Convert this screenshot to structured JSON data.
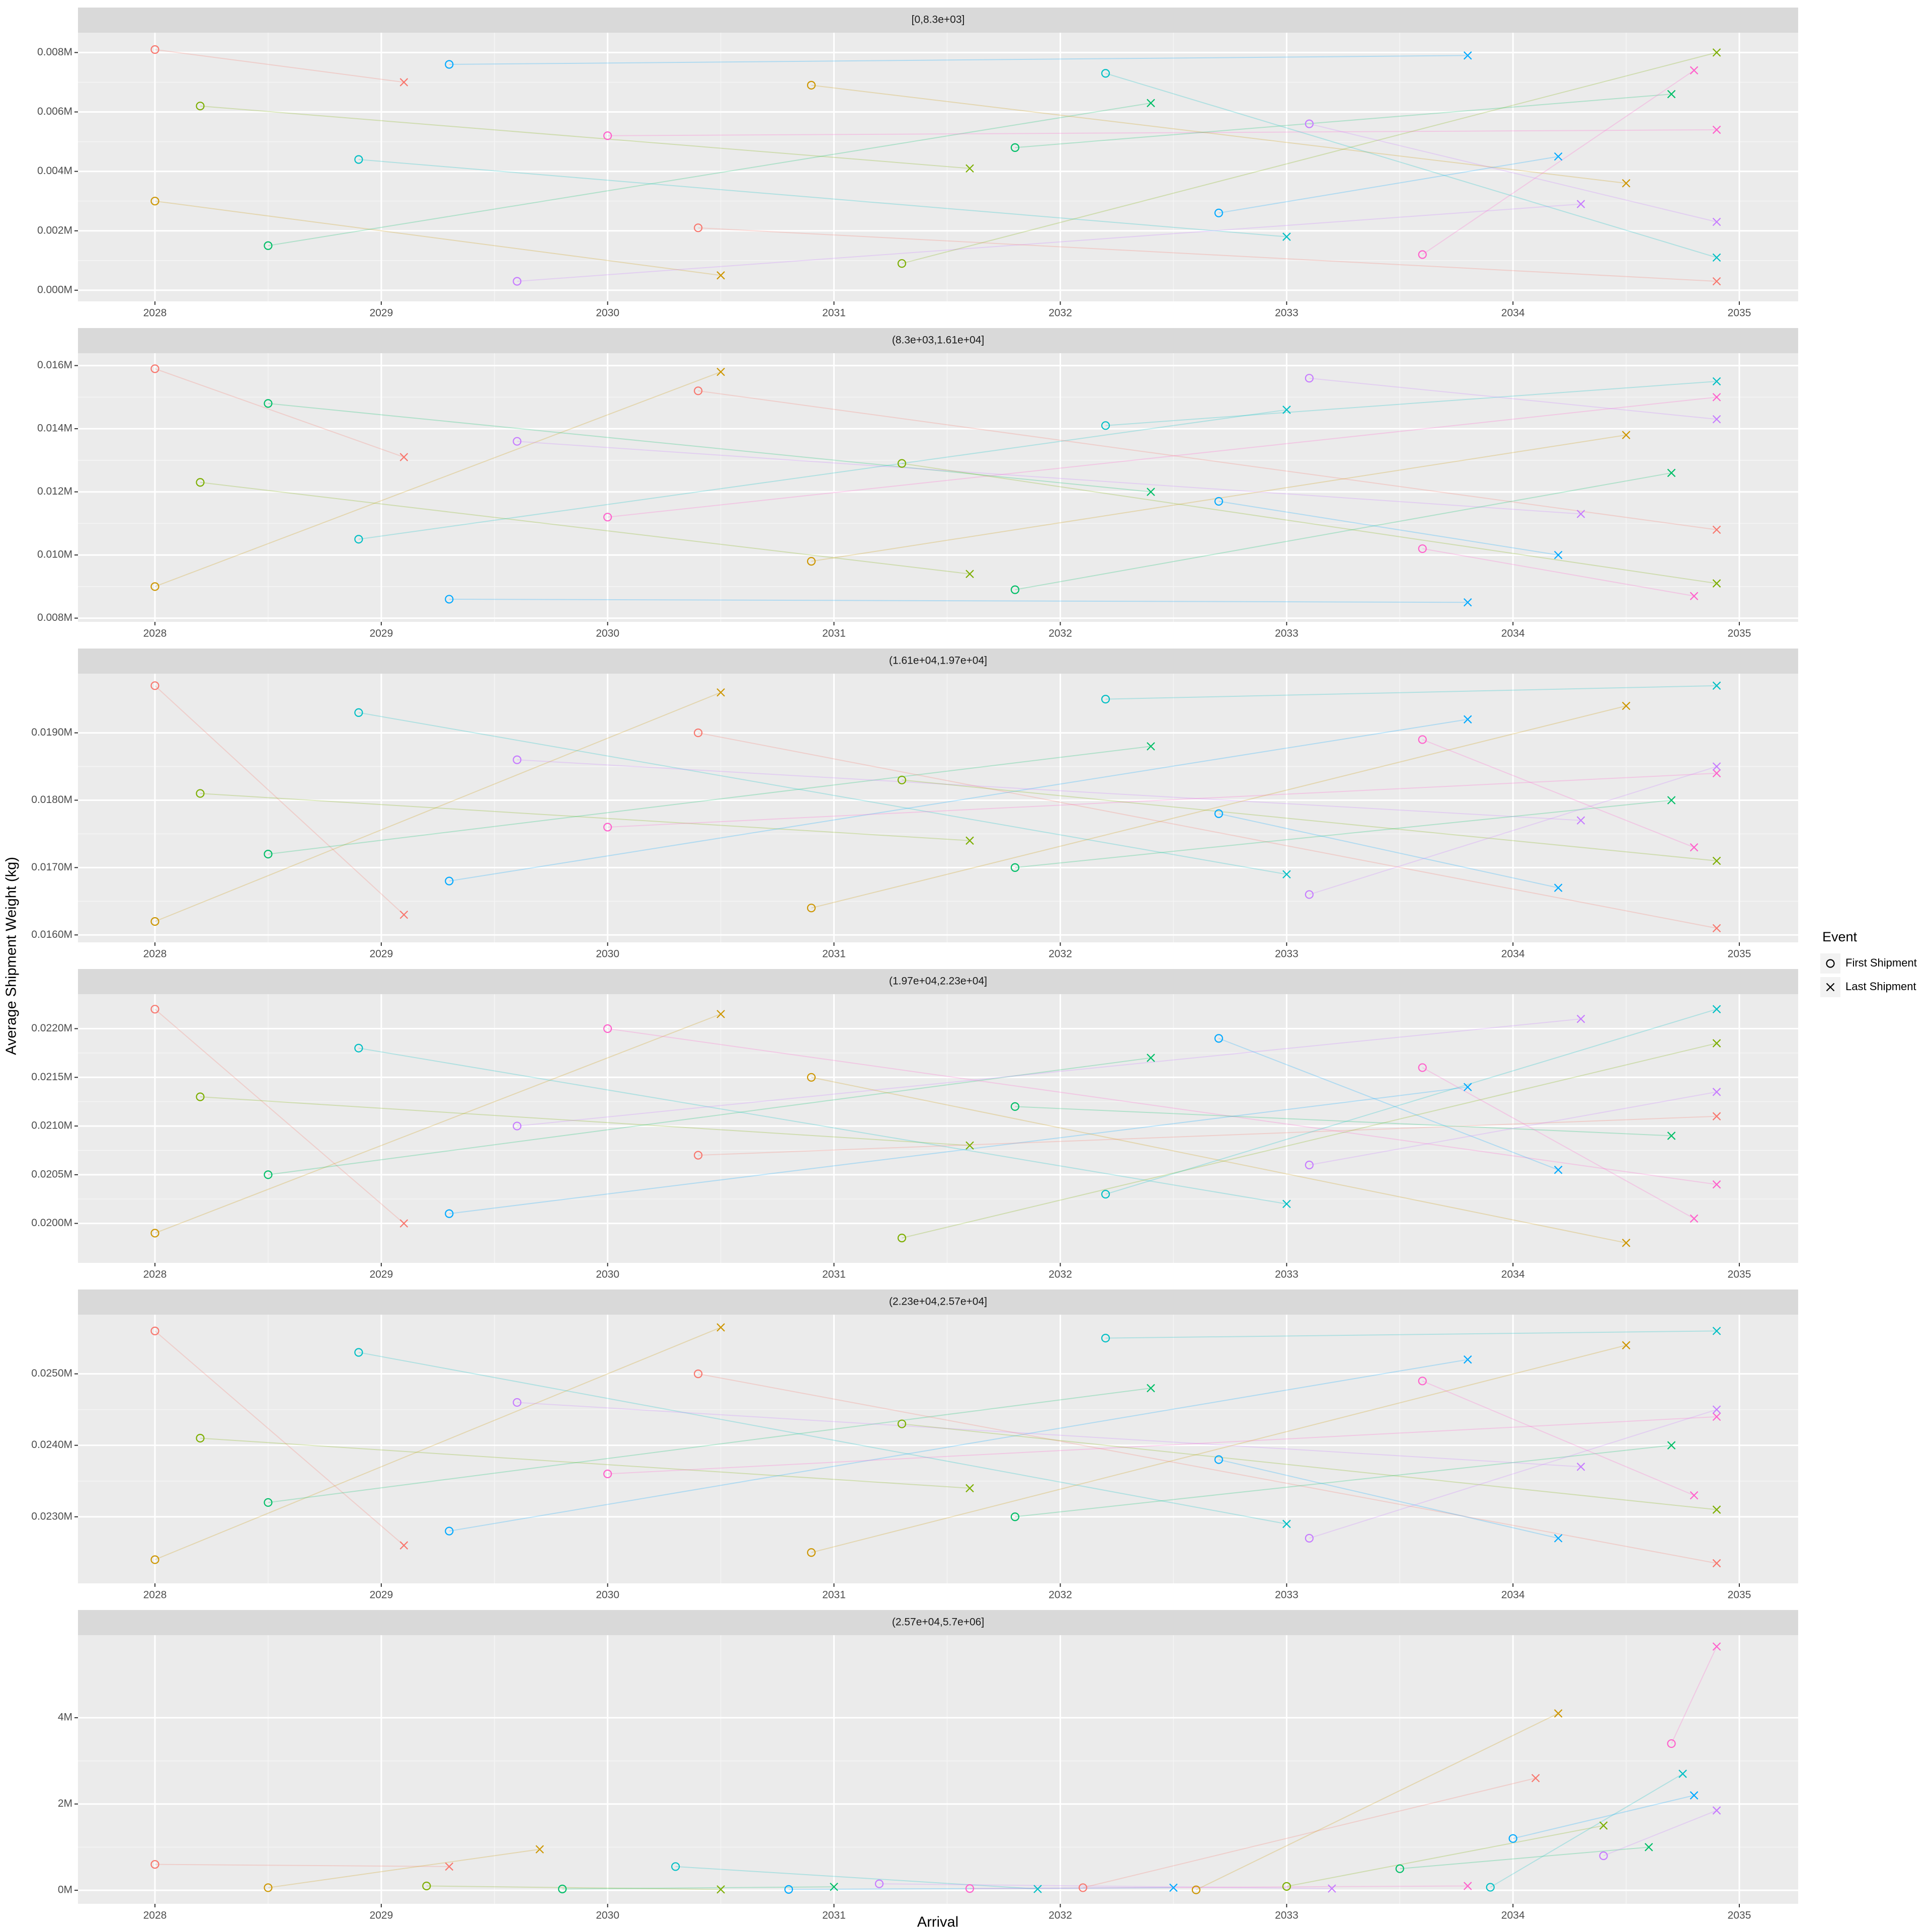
{
  "chart_data": [
    {
      "type": "scatter",
      "title": "[0,8.3e+03]",
      "grid": true,
      "xlim": [
        2027.66,
        2035.26
      ],
      "xticks": [
        2028,
        2029,
        2030,
        2031,
        2032,
        2033,
        2034,
        2035
      ],
      "ylim": [
        -375,
        8667
      ],
      "yticks": [
        {
          "value": 0,
          "label": "0.000M"
        },
        {
          "value": 2000,
          "label": "0.002M"
        },
        {
          "value": 4000,
          "label": "0.004M"
        },
        {
          "value": 6000,
          "label": "0.006M"
        },
        {
          "value": 8000,
          "label": "0.008M"
        }
      ],
      "series": [
        {
          "marker": "circle",
          "x": [
            2028,
            2028,
            2028.2,
            2028.5,
            2028.9,
            2029.3,
            2029.6,
            2030,
            2030.4,
            2030.9,
            2031.3,
            2031.8,
            2032.2,
            2032.7,
            2033.1,
            2033.6
          ],
          "values": [
            8100,
            3000,
            6200,
            1500,
            4400,
            7600,
            300,
            5200,
            2100,
            6900,
            900,
            4800,
            7300,
            2600,
            5600,
            1200
          ]
        },
        {
          "marker": "cross",
          "x": [
            2029.1,
            2030.5,
            2031.6,
            2032.4,
            2033.0,
            2033.8,
            2034.3,
            2034.9,
            2034.9,
            2034.5,
            2034.9,
            2034.7,
            2034.9,
            2034.2,
            2034.9,
            2034.8
          ],
          "values": [
            7000,
            500,
            4100,
            6300,
            1800,
            7900,
            2900,
            5400,
            300,
            3600,
            8000,
            6600,
            1100,
            4500,
            2300,
            7400
          ]
        }
      ]
    },
    {
      "type": "scatter",
      "title": "(8.3e+03,1.61e+04]",
      "grid": true,
      "xlim": [
        2027.66,
        2035.26
      ],
      "xticks": [
        2028,
        2029,
        2030,
        2031,
        2032,
        2033,
        2034,
        2035
      ],
      "ylim": [
        7882,
        16392
      ],
      "yticks": [
        {
          "value": 8000,
          "label": "0.008M"
        },
        {
          "value": 10000,
          "label": "0.010M"
        },
        {
          "value": 12000,
          "label": "0.012M"
        },
        {
          "value": 14000,
          "label": "0.014M"
        },
        {
          "value": 16000,
          "label": "0.016M"
        }
      ],
      "series": [
        {
          "marker": "circle",
          "x": [
            2028,
            2028,
            2028.2,
            2028.5,
            2028.9,
            2029.3,
            2029.6,
            2030,
            2030.4,
            2030.9,
            2031.3,
            2031.8,
            2032.2,
            2032.7,
            2033.1,
            2033.6
          ],
          "values": [
            15900,
            9000,
            12300,
            14800,
            10500,
            8600,
            13600,
            11200,
            15200,
            9800,
            12900,
            8900,
            14100,
            11700,
            15600,
            10200
          ]
        },
        {
          "marker": "cross",
          "x": [
            2029.1,
            2030.5,
            2031.6,
            2032.4,
            2033.0,
            2033.8,
            2034.3,
            2034.9,
            2034.9,
            2034.5,
            2034.9,
            2034.7,
            2034.9,
            2034.2,
            2034.9,
            2034.8
          ],
          "values": [
            13100,
            15800,
            9400,
            12000,
            14600,
            8500,
            11300,
            15000,
            10800,
            13800,
            9100,
            12600,
            15500,
            10000,
            14300,
            8700
          ]
        }
      ]
    },
    {
      "type": "scatter",
      "title": "(1.61e+04,1.97e+04]",
      "grid": true,
      "xlim": [
        2027.66,
        2035.26
      ],
      "xticks": [
        2028,
        2029,
        2030,
        2031,
        2032,
        2033,
        2034,
        2035
      ],
      "ylim": [
        15890,
        19878
      ],
      "yticks": [
        {
          "value": 16000,
          "label": "0.0160M"
        },
        {
          "value": 17000,
          "label": "0.0170M"
        },
        {
          "value": 18000,
          "label": "0.0180M"
        },
        {
          "value": 19000,
          "label": "0.0190M"
        }
      ],
      "series": [
        {
          "marker": "circle",
          "x": [
            2028,
            2028,
            2028.2,
            2028.5,
            2028.9,
            2029.3,
            2029.6,
            2030,
            2030.4,
            2030.9,
            2031.3,
            2031.8,
            2032.2,
            2032.7,
            2033.1,
            2033.6
          ],
          "values": [
            19700,
            16200,
            18100,
            17200,
            19300,
            16800,
            18600,
            17600,
            19000,
            16400,
            18300,
            17000,
            19500,
            17800,
            16600,
            18900
          ]
        },
        {
          "marker": "cross",
          "x": [
            2029.1,
            2030.5,
            2031.6,
            2032.4,
            2033.0,
            2033.8,
            2034.3,
            2034.9,
            2034.9,
            2034.5,
            2034.9,
            2034.7,
            2034.9,
            2034.2,
            2034.9,
            2034.8
          ],
          "values": [
            16300,
            19600,
            17400,
            18800,
            16900,
            19200,
            17700,
            18400,
            16100,
            19400,
            17100,
            18000,
            19700,
            16700,
            18500,
            17300
          ]
        }
      ]
    },
    {
      "type": "scatter",
      "title": "(1.97e+04,2.23e+04]",
      "grid": true,
      "xlim": [
        2027.66,
        2035.26
      ],
      "xticks": [
        2028,
        2029,
        2030,
        2031,
        2032,
        2033,
        2034,
        2035
      ],
      "ylim": [
        19595,
        22354
      ],
      "yticks": [
        {
          "value": 20000,
          "label": "0.0200M"
        },
        {
          "value": 20500,
          "label": "0.0205M"
        },
        {
          "value": 21000,
          "label": "0.0210M"
        },
        {
          "value": 21500,
          "label": "0.0215M"
        },
        {
          "value": 22000,
          "label": "0.0220M"
        }
      ],
      "series": [
        {
          "marker": "circle",
          "x": [
            2028,
            2028,
            2028.2,
            2028.5,
            2028.9,
            2029.3,
            2029.6,
            2030,
            2030.4,
            2030.9,
            2031.3,
            2031.8,
            2032.2,
            2032.7,
            2033.1,
            2033.6
          ],
          "values": [
            22200,
            19900,
            21300,
            20500,
            21800,
            20100,
            21000,
            22000,
            20700,
            21500,
            19850,
            21200,
            20300,
            21900,
            20600,
            21600
          ]
        },
        {
          "marker": "cross",
          "x": [
            2029.1,
            2030.5,
            2031.6,
            2032.4,
            2033.0,
            2033.8,
            2034.3,
            2034.9,
            2034.9,
            2034.5,
            2034.9,
            2034.7,
            2034.9,
            2034.2,
            2034.9,
            2034.8
          ],
          "values": [
            20000,
            22150,
            20800,
            21700,
            20200,
            21400,
            22100,
            20400,
            21100,
            19800,
            21850,
            20900,
            22200,
            20550,
            21350,
            20050
          ]
        }
      ]
    },
    {
      "type": "scatter",
      "title": "(2.23e+04,2.57e+04]",
      "grid": true,
      "xlim": [
        2027.66,
        2035.26
      ],
      "xticks": [
        2028,
        2029,
        2030,
        2031,
        2032,
        2033,
        2034,
        2035
      ],
      "ylim": [
        22069,
        25828
      ],
      "yticks": [
        {
          "value": 23000,
          "label": "0.0230M"
        },
        {
          "value": 24000,
          "label": "0.0240M"
        },
        {
          "value": 25000,
          "label": "0.0250M"
        }
      ],
      "series": [
        {
          "marker": "circle",
          "x": [
            2028,
            2028,
            2028.2,
            2028.5,
            2028.9,
            2029.3,
            2029.6,
            2030,
            2030.4,
            2030.9,
            2031.3,
            2031.8,
            2032.2,
            2032.7,
            2033.1,
            2033.6
          ],
          "values": [
            25600,
            22400,
            24100,
            23200,
            25300,
            22800,
            24600,
            23600,
            25000,
            22500,
            24300,
            23000,
            25500,
            23800,
            22700,
            24900
          ]
        },
        {
          "marker": "cross",
          "x": [
            2029.1,
            2030.5,
            2031.6,
            2032.4,
            2033.0,
            2033.8,
            2034.3,
            2034.9,
            2034.9,
            2034.5,
            2034.9,
            2034.7,
            2034.9,
            2034.2,
            2034.9,
            2034.8
          ],
          "values": [
            22600,
            25650,
            23400,
            24800,
            22900,
            25200,
            23700,
            24400,
            22350,
            25400,
            23100,
            24000,
            25600,
            22700,
            24500,
            23300
          ]
        }
      ]
    },
    {
      "type": "scatter",
      "title": "(2.57e+04,5.7e+06]",
      "grid": true,
      "xlim": [
        2027.66,
        2035.26
      ],
      "xticks": [
        2028,
        2029,
        2030,
        2031,
        2032,
        2033,
        2034,
        2035
      ],
      "ylim": [
        -314000,
        5914000
      ],
      "yticks": [
        {
          "value": 0,
          "label": "0M"
        },
        {
          "value": 2000000,
          "label": "2M"
        },
        {
          "value": 4000000,
          "label": "4M"
        }
      ],
      "series": [
        {
          "marker": "circle",
          "x": [
            2028,
            2028.5,
            2029.2,
            2029.8,
            2030.3,
            2030.8,
            2031.2,
            2031.6,
            2032.1,
            2032.6,
            2033.0,
            2033.5,
            2033.9,
            2034.0,
            2034.4,
            2034.7
          ],
          "values": [
            600000,
            60000,
            100000,
            30000,
            550000,
            20000,
            150000,
            40000,
            60000,
            10000,
            90000,
            500000,
            70000,
            1200000,
            800000,
            3400000
          ]
        },
        {
          "marker": "cross",
          "x": [
            2029.3,
            2029.7,
            2030.5,
            2031.0,
            2031.9,
            2032.5,
            2033.2,
            2033.8,
            2034.1,
            2034.2,
            2034.4,
            2034.6,
            2034.75,
            2034.8,
            2034.9,
            2034.9
          ],
          "values": [
            550000,
            950000,
            20000,
            80000,
            30000,
            60000,
            40000,
            100000,
            2600000,
            4100000,
            1500000,
            1000000,
            2700000,
            2200000,
            1850000,
            5650000
          ]
        }
      ]
    }
  ],
  "axis_labels": {
    "x": "Arrival",
    "y": "Average Shipment Weight (kg)"
  },
  "legend": {
    "title": "Event",
    "entries": [
      {
        "name": "First Shipment",
        "marker": "circle"
      },
      {
        "name": "Last Shipment",
        "marker": "cross"
      }
    ]
  },
  "palette": [
    "#F8766D",
    "#CD9600",
    "#7CAE00",
    "#00BE67",
    "#00BFC4",
    "#00A9FF",
    "#C77CFF",
    "#FF61CC"
  ]
}
